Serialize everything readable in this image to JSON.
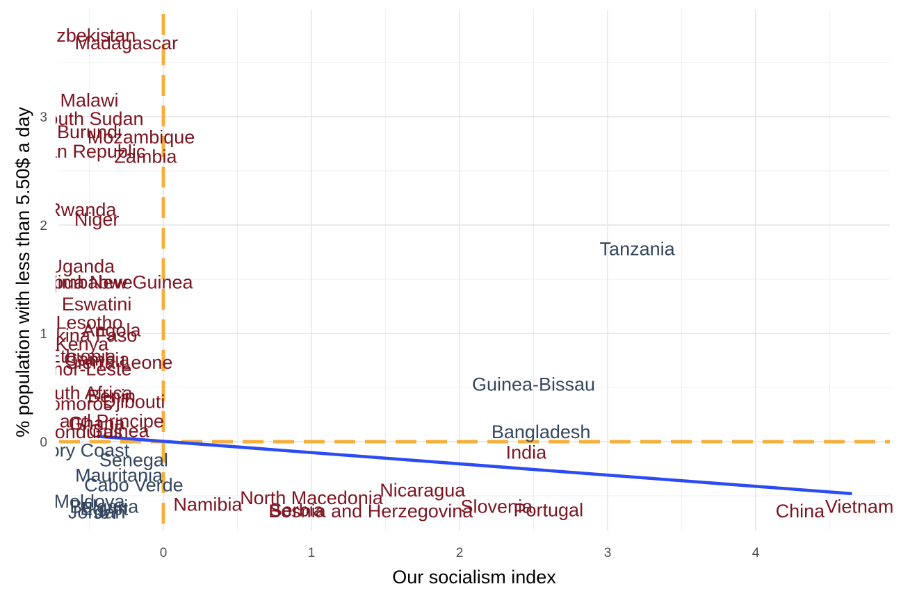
{
  "chart_data": {
    "type": "scatter",
    "xlabel": "Our socialism index",
    "ylabel": "% population with less than 5.50$ a day",
    "xlim": [
      -0.72,
      4.9
    ],
    "ylim": [
      -0.82,
      3.9
    ],
    "x_ticks": [
      "0",
      "1",
      "2",
      "3",
      "4"
    ],
    "y_ticks": [
      "0",
      "1",
      "2",
      "3"
    ],
    "reference_lines": {
      "vline_x": 0,
      "hline_y": 0,
      "color": "#f4b03c",
      "style": "dashed"
    },
    "trend_line": {
      "color": "#2a4bf5",
      "x": [
        -0.45,
        4.65
      ],
      "y": [
        0.05,
        -0.48
      ]
    },
    "colors": {
      "high_poverty": "#7d1521",
      "low_poverty": "#34465f"
    },
    "labels": [
      {
        "text": "Uzbekistan",
        "x": -0.5,
        "y": 3.75,
        "group": "high"
      },
      {
        "text": "Madagascar",
        "x": -0.25,
        "y": 3.68,
        "group": "high"
      },
      {
        "text": "Malawi",
        "x": -0.5,
        "y": 3.15,
        "group": "high"
      },
      {
        "text": "South Sudan",
        "x": -0.5,
        "y": 2.98,
        "group": "high"
      },
      {
        "text": "Burundi",
        "x": -0.5,
        "y": 2.86,
        "group": "high"
      },
      {
        "text": "Mozambique",
        "x": -0.15,
        "y": 2.81,
        "group": "high"
      },
      {
        "text": "Central African Republic",
        "x": -0.8,
        "y": 2.68,
        "group": "high"
      },
      {
        "text": "Zambia",
        "x": -0.12,
        "y": 2.63,
        "group": "high"
      },
      {
        "text": "Rwanda",
        "x": -0.55,
        "y": 2.14,
        "group": "high"
      },
      {
        "text": "Niger",
        "x": -0.45,
        "y": 2.05,
        "group": "high"
      },
      {
        "text": "Tanzania",
        "x": 3.2,
        "y": 1.78,
        "group": "low"
      },
      {
        "text": "Uganda",
        "x": -0.55,
        "y": 1.62,
        "group": "high"
      },
      {
        "text": "Zimbabwe",
        "x": -0.5,
        "y": 1.47,
        "group": "high"
      },
      {
        "text": "Papua New Guinea",
        "x": -0.35,
        "y": 1.47,
        "group": "high"
      },
      {
        "text": "Eswatini",
        "x": -0.45,
        "y": 1.27,
        "group": "high"
      },
      {
        "text": "Lesotho",
        "x": -0.5,
        "y": 1.1,
        "group": "high"
      },
      {
        "text": "Angola",
        "x": -0.35,
        "y": 1.03,
        "group": "high"
      },
      {
        "text": "Burkina Faso",
        "x": -0.55,
        "y": 0.98,
        "group": "high"
      },
      {
        "text": "Kenya",
        "x": -0.55,
        "y": 0.9,
        "group": "high"
      },
      {
        "text": "Ethiopia",
        "x": -0.55,
        "y": 0.79,
        "group": "high"
      },
      {
        "text": "Gambia",
        "x": -0.45,
        "y": 0.76,
        "group": "high"
      },
      {
        "text": "Sierra Leone",
        "x": -0.3,
        "y": 0.73,
        "group": "high"
      },
      {
        "text": "Timor-Leste",
        "x": -0.55,
        "y": 0.67,
        "group": "high"
      },
      {
        "text": "Guinea-Bissau",
        "x": 2.5,
        "y": 0.53,
        "group": "low"
      },
      {
        "text": "South Africa",
        "x": -0.55,
        "y": 0.45,
        "group": "high"
      },
      {
        "text": "Benin",
        "x": -0.35,
        "y": 0.42,
        "group": "high"
      },
      {
        "text": "Djibouti",
        "x": -0.2,
        "y": 0.37,
        "group": "high"
      },
      {
        "text": "Comoros",
        "x": -0.6,
        "y": 0.35,
        "group": "high"
      },
      {
        "text": "Sao Tome and Principe",
        "x": -0.65,
        "y": 0.19,
        "group": "high"
      },
      {
        "text": "Ghana",
        "x": -0.45,
        "y": 0.17,
        "group": "high"
      },
      {
        "text": "Honduras",
        "x": -0.55,
        "y": 0.09,
        "group": "high"
      },
      {
        "text": "Guinea",
        "x": -0.3,
        "y": 0.1,
        "group": "high"
      },
      {
        "text": "Bangladesh",
        "x": 2.55,
        "y": 0.09,
        "group": "low"
      },
      {
        "text": "India",
        "x": 2.45,
        "y": -0.1,
        "group": "high"
      },
      {
        "text": "Ivory Coast",
        "x": -0.55,
        "y": -0.08,
        "group": "low"
      },
      {
        "text": "Senegal",
        "x": -0.2,
        "y": -0.17,
        "group": "low"
      },
      {
        "text": "Nicaragua",
        "x": 1.75,
        "y": -0.45,
        "group": "high"
      },
      {
        "text": "Mauritania",
        "x": -0.3,
        "y": -0.31,
        "group": "low"
      },
      {
        "text": "North Macedonia",
        "x": 1.0,
        "y": -0.52,
        "group": "high"
      },
      {
        "text": "Cabo Verde",
        "x": -0.2,
        "y": -0.4,
        "group": "low"
      },
      {
        "text": "Namibia",
        "x": 0.3,
        "y": -0.58,
        "group": "high"
      },
      {
        "text": "Bosnia and Herzegovina",
        "x": 1.4,
        "y": -0.64,
        "group": "high"
      },
      {
        "text": "Slovenia",
        "x": 2.25,
        "y": -0.6,
        "group": "high"
      },
      {
        "text": "Portugal",
        "x": 2.6,
        "y": -0.63,
        "group": "high"
      },
      {
        "text": "China",
        "x": 4.3,
        "y": -0.64,
        "group": "high"
      },
      {
        "text": "Vietnam",
        "x": 4.7,
        "y": -0.6,
        "group": "high"
      },
      {
        "text": "Serbia",
        "x": 0.9,
        "y": -0.63,
        "group": "high"
      },
      {
        "text": "Bulgaria",
        "x": -0.4,
        "y": -0.6,
        "group": "low"
      },
      {
        "text": "Moldova",
        "x": -0.5,
        "y": -0.55,
        "group": "low"
      },
      {
        "text": "Jordan",
        "x": -0.45,
        "y": -0.65,
        "group": "low"
      },
      {
        "text": "Egypt",
        "x": -0.4,
        "y": -0.62,
        "group": "low"
      }
    ]
  }
}
